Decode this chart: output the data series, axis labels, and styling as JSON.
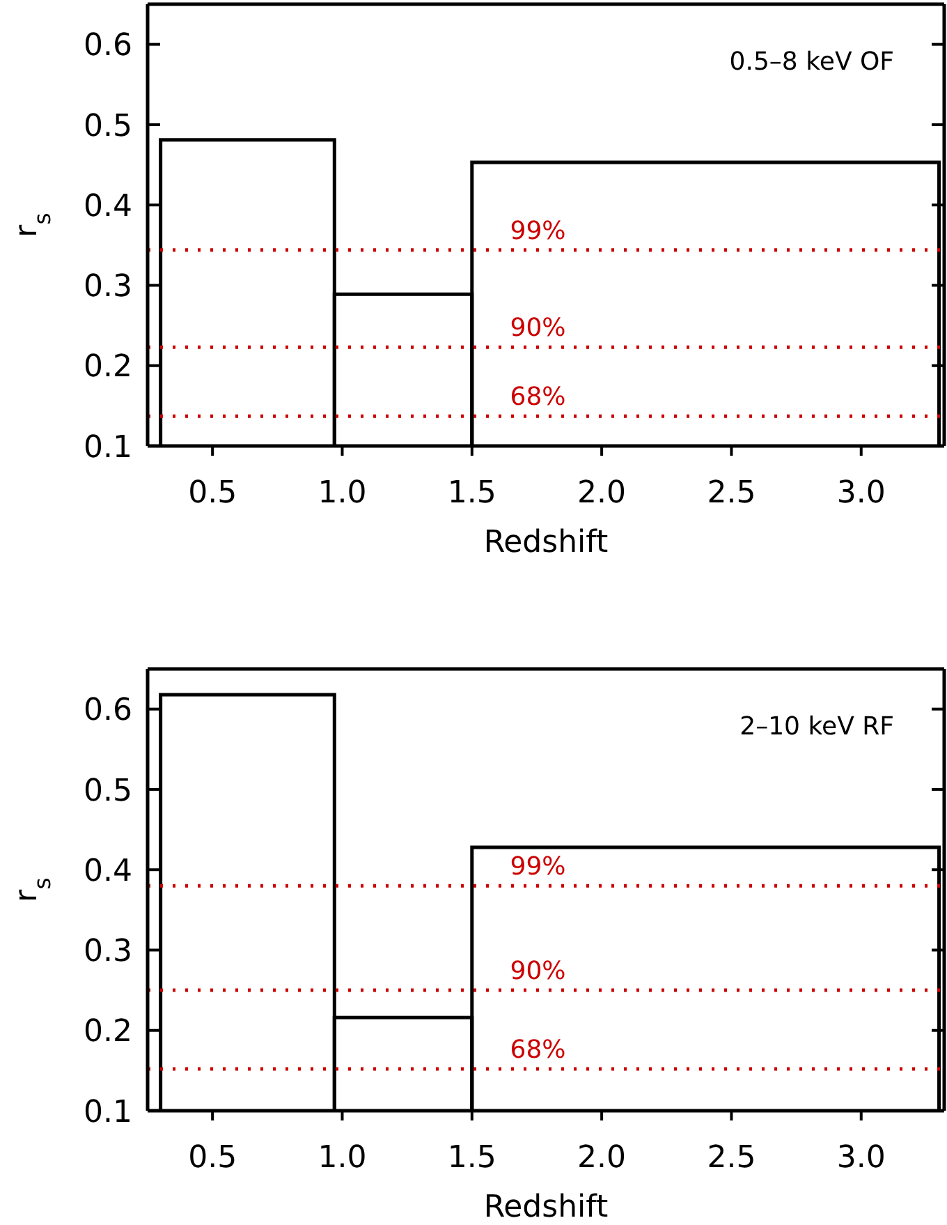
{
  "chart_data": [
    {
      "type": "histogram",
      "bins": [
        0.3,
        0.97,
        1.5,
        3.3
      ],
      "values": [
        0.481,
        0.289,
        0.453
      ],
      "color": "#000000",
      "xlabel": "Redshift",
      "ylabel": "r$_{s}$",
      "xlim": [
        0.25,
        3.32
      ],
      "xticks": [
        0.5,
        {
          "value": 1,
          "label": "1.0"
        },
        1.5,
        {
          "value": 2,
          "label": "2.0"
        },
        2.5,
        {
          "value": 3,
          "label": "3.0"
        }
      ],
      "ylim": [
        0.1,
        0.65
      ],
      "yticks": [
        0.1,
        0.2,
        0.3,
        0.4,
        0.5,
        0.6
      ],
      "ref_lines": [
        {
          "axis": "y",
          "value": 0.344,
          "color": "#cc0000",
          "line_style": "dotted"
        },
        {
          "axis": "y",
          "value": 0.223,
          "color": "#cc0000",
          "line_style": "dotted"
        },
        {
          "axis": "y",
          "value": 0.137,
          "color": "#cc0000",
          "line_style": "dotted"
        }
      ],
      "annotations": [
        "0.5–8 keV OF",
        {
          "text": "99%",
          "y": 0.344
        },
        {
          "text": "90%",
          "y": 0.223
        },
        {
          "text": "68%",
          "y": 0.137
        }
      ]
    },
    {
      "type": "histogram",
      "bins": [
        0.3,
        0.97,
        1.5,
        3.3
      ],
      "values": [
        0.618,
        0.216,
        0.428
      ],
      "color": "#000000",
      "xlabel": "Redshift",
      "ylabel": "r$_{s}$",
      "xlim": [
        0.25,
        3.32
      ],
      "xticks": [
        0.5,
        {
          "value": 1,
          "label": "1.0"
        },
        1.5,
        {
          "value": 2,
          "label": "2.0"
        },
        2.5,
        {
          "value": 3,
          "label": "3.0"
        }
      ],
      "ylim": [
        0.1,
        0.65
      ],
      "yticks": [
        0.1,
        0.2,
        0.3,
        0.4,
        0.5,
        0.6
      ],
      "ref_lines": [
        {
          "axis": "y",
          "value": 0.38,
          "color": "#cc0000",
          "line_style": "dotted"
        },
        {
          "axis": "y",
          "value": 0.25,
          "color": "#cc0000",
          "line_style": "dotted"
        },
        {
          "axis": "y",
          "value": 0.152,
          "color": "#cc0000",
          "line_style": "dotted"
        }
      ],
      "annotations": [
        "2–10 keV RF",
        {
          "text": "99%",
          "y": 0.38
        },
        {
          "text": "90%",
          "y": 0.25
        },
        {
          "text": "68%",
          "y": 0.152
        }
      ]
    }
  ]
}
